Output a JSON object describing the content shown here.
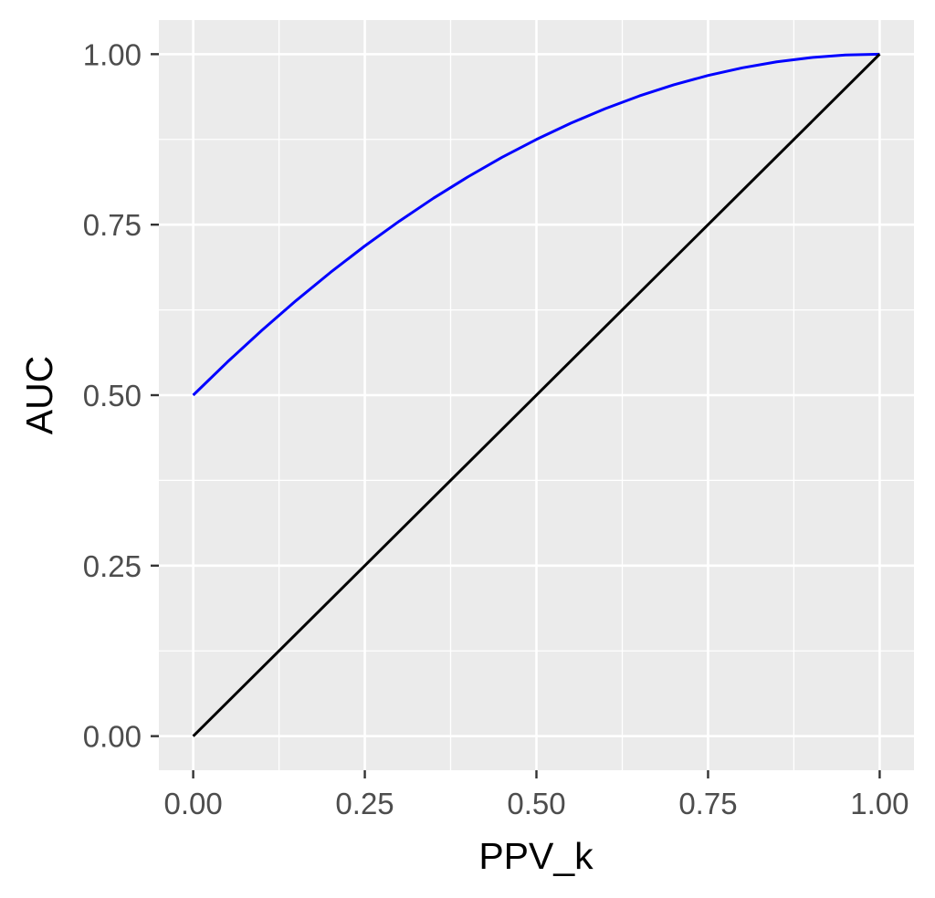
{
  "chart_data": {
    "type": "line",
    "title": "",
    "xlabel": "PPV_k",
    "ylabel": "AUC",
    "xlim": [
      -0.05,
      1.05
    ],
    "ylim": [
      -0.05,
      1.05
    ],
    "x_ticks": [
      0,
      0.25,
      0.5,
      0.75,
      1
    ],
    "x_tick_labels": [
      "0.00",
      "0.25",
      "0.50",
      "0.75",
      "1.00"
    ],
    "y_ticks": [
      0,
      0.25,
      0.5,
      0.75,
      1
    ],
    "y_tick_labels": [
      "0.00",
      "0.25",
      "0.50",
      "0.75",
      "1.00"
    ],
    "grid": true,
    "legend": "none",
    "background": "#ebebeb",
    "series": [
      {
        "color": "#0000ff",
        "x": [
          0,
          0.05,
          0.1,
          0.15,
          0.2,
          0.25,
          0.3,
          0.35,
          0.4,
          0.45,
          0.5,
          0.55,
          0.6,
          0.65,
          0.7,
          0.75,
          0.8,
          0.85,
          0.9,
          0.95,
          1
        ],
        "y": [
          0.5,
          0.5488,
          0.595,
          0.6388,
          0.68,
          0.7188,
          0.755,
          0.7888,
          0.82,
          0.8488,
          0.875,
          0.8988,
          0.92,
          0.9388,
          0.955,
          0.9688,
          0.98,
          0.9888,
          0.995,
          0.9988,
          1
        ]
      },
      {
        "color": "#000000",
        "x": [
          0,
          1
        ],
        "y": [
          0,
          1
        ]
      }
    ]
  }
}
